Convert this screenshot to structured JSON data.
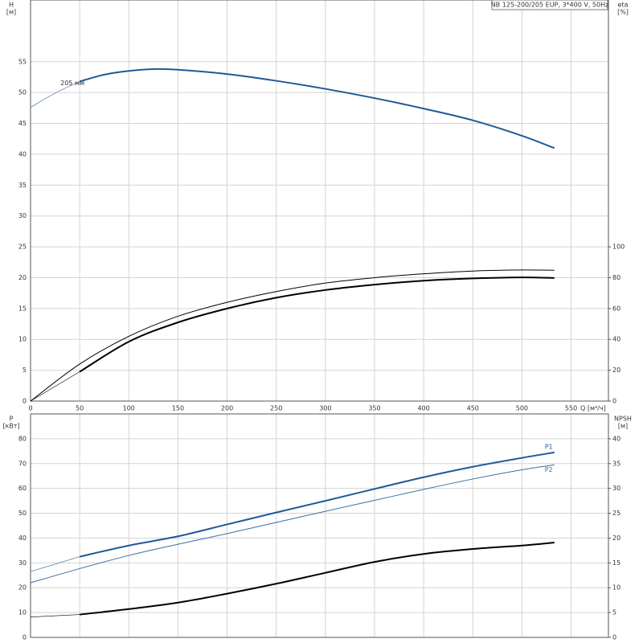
{
  "chart_data": [
    {
      "type": "line",
      "annotation": "NB 125-200/205 EUP, 3*400 V, 50Hz",
      "ylabel": [
        "H",
        "[м]"
      ],
      "y2label": [
        "eta",
        "[%]"
      ],
      "xlabel": "Q [м³/ч]",
      "xlim": [
        0,
        588
      ],
      "ylim": [
        0,
        65
      ],
      "y2lim": [
        0,
        260
      ],
      "xticks": [
        0,
        50,
        100,
        150,
        200,
        250,
        300,
        350,
        400,
        450,
        500,
        550
      ],
      "yticks": [
        0,
        5,
        10,
        15,
        20,
        25,
        30,
        35,
        40,
        45,
        50,
        55
      ],
      "y2ticks": [
        0,
        20,
        40,
        60,
        80,
        100
      ],
      "grid": true,
      "series": [
        {
          "x": [
            0,
            25,
            50
          ],
          "values": [
            47.6,
            49.9,
            51.8
          ],
          "color": "#5b7fa8",
          "width": 0.8
        },
        {
          "name": "205 мм",
          "x": [
            50,
            75,
            100,
            125,
            150,
            200,
            250,
            300,
            350,
            400,
            450,
            500,
            533
          ],
          "values": [
            51.8,
            52.9,
            53.5,
            53.8,
            53.7,
            53.0,
            51.9,
            50.6,
            49.1,
            47.4,
            45.5,
            43.0,
            41.0
          ],
          "color": "#1f5a96",
          "width": 2
        },
        {
          "axis": "y2",
          "x": [
            0,
            50,
            100,
            150,
            200,
            250,
            300,
            350,
            400,
            450,
            500,
            533
          ],
          "values": [
            0,
            24,
            42,
            55,
            64,
            71,
            76.5,
            80,
            82.5,
            84.3,
            85,
            84.8
          ],
          "color": "#000000",
          "width": 1
        },
        {
          "axis": "y2",
          "x": [
            0,
            50
          ],
          "values": [
            0,
            19
          ],
          "color": "#000000",
          "width": 0.6
        },
        {
          "axis": "y2",
          "x": [
            50,
            100,
            150,
            200,
            250,
            300,
            350,
            400,
            450,
            500,
            533
          ],
          "values": [
            19,
            38.5,
            51,
            60,
            67,
            72,
            75.5,
            78,
            79.5,
            80.2,
            79.8
          ],
          "color": "#000000",
          "width": 2
        }
      ]
    },
    {
      "type": "line",
      "ylabel": [
        "P",
        "[кВт]"
      ],
      "y2label": [
        "NPSH",
        "[м]"
      ],
      "xlim": [
        0,
        588
      ],
      "ylim": [
        0,
        90
      ],
      "y2lim": [
        0,
        45
      ],
      "yticks": [
        0,
        10,
        20,
        30,
        40,
        50,
        60,
        70,
        80
      ],
      "y2ticks": [
        0,
        5,
        10,
        15,
        20,
        25,
        30,
        35,
        40
      ],
      "grid": true,
      "series": [
        {
          "x": [
            0,
            50
          ],
          "values": [
            26.5,
            32.5
          ],
          "color": "#5b7fa8",
          "width": 0.8
        },
        {
          "name": "P1",
          "x": [
            50,
            100,
            150,
            200,
            250,
            300,
            350,
            400,
            450,
            500,
            533
          ],
          "values": [
            32.5,
            37,
            40.7,
            45.5,
            50.3,
            55,
            59.8,
            64.5,
            68.7,
            72.3,
            74.5
          ],
          "color": "#1f5a96",
          "width": 2
        },
        {
          "name": "P2",
          "x": [
            0,
            50,
            100,
            150,
            200,
            250,
            300,
            350,
            400,
            450,
            500,
            533
          ],
          "values": [
            22,
            27.7,
            33,
            37.5,
            41.8,
            46.3,
            50.8,
            55.2,
            59.6,
            63.8,
            67.5,
            69.5
          ],
          "color": "#3a6ea5",
          "width": 1
        },
        {
          "axis": "y2",
          "x": [
            0,
            50
          ],
          "values": [
            4.1,
            4.6
          ],
          "color": "#000000",
          "width": 0.6
        },
        {
          "axis": "y2",
          "x": [
            50,
            100,
            150,
            200,
            250,
            300,
            350,
            400,
            450,
            500,
            533
          ],
          "values": [
            4.6,
            5.7,
            7,
            8.8,
            10.8,
            13,
            15.2,
            16.8,
            17.8,
            18.5,
            19.1
          ],
          "color": "#000000",
          "width": 2
        }
      ]
    }
  ]
}
